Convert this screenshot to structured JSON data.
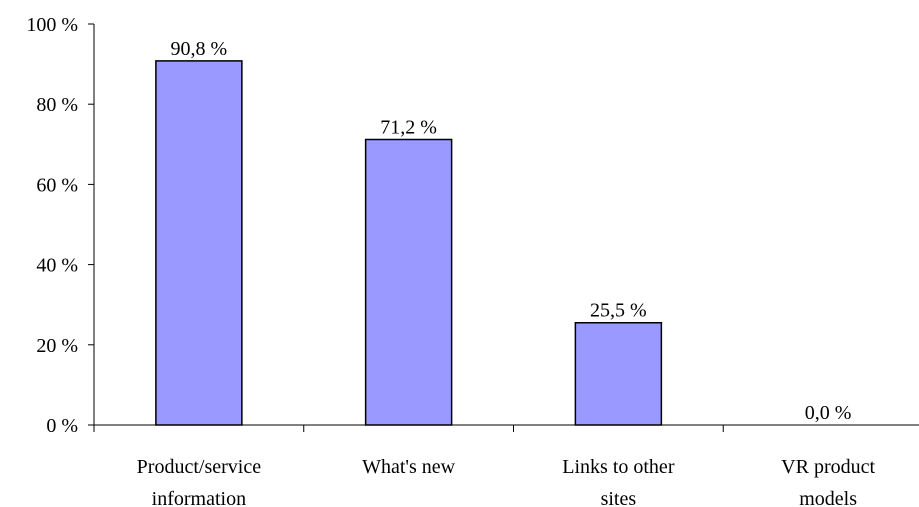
{
  "chart_data": {
    "type": "bar",
    "title": "",
    "xlabel": "",
    "ylabel": "",
    "categories": [
      [
        "Product/service",
        "information"
      ],
      [
        "What's new"
      ],
      [
        "Links to other",
        "sites"
      ],
      [
        "VR product",
        "models"
      ]
    ],
    "values": [
      90.8,
      71.2,
      25.5,
      0.0
    ],
    "data_labels": [
      "90,8 %",
      "71,2 %",
      "25,5 %",
      "0,0 %"
    ],
    "ylim": [
      0,
      100
    ],
    "yticks": [
      0,
      20,
      40,
      60,
      80,
      100
    ],
    "ytick_labels": [
      "0 %",
      "20 %",
      "40 %",
      "60 %",
      "80 %",
      "100 %"
    ],
    "grid": false,
    "legend": "none",
    "colors": {
      "bar_fill": "#9999ff",
      "bar_stroke": "#000000",
      "axis": "#000000"
    }
  }
}
